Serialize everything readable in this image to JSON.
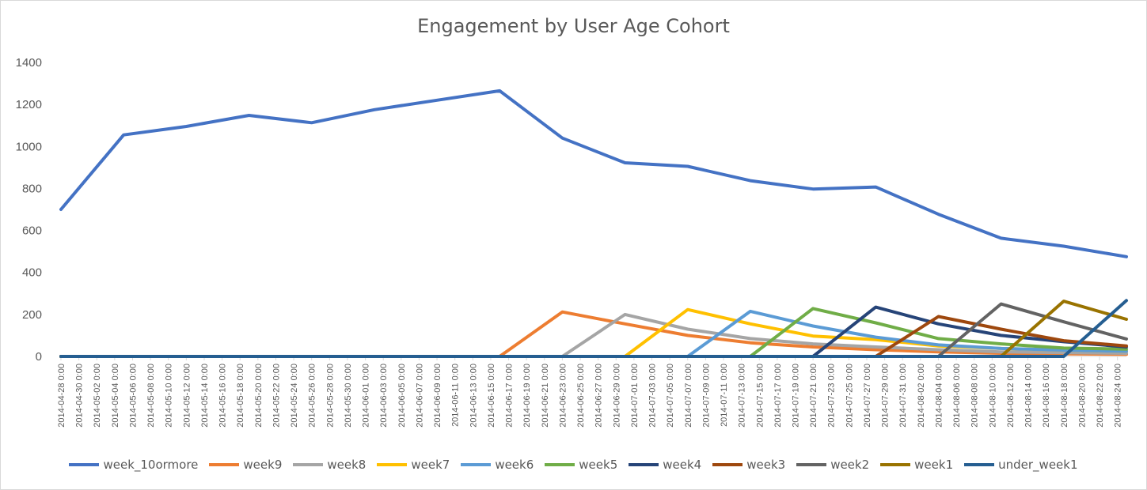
{
  "chart_data": {
    "type": "line",
    "title": "Engagement by User Age Cohort",
    "xlabel": "",
    "ylabel": "",
    "ylim": [
      0,
      1400
    ],
    "yticks": [
      0,
      200,
      400,
      600,
      800,
      1000,
      1200,
      1400
    ],
    "grid": "none",
    "legend": "bottom",
    "x": [
      "2014-04-28 0:00",
      "2014-05-05 0:00",
      "2014-05-12 0:00",
      "2014-05-19 0:00",
      "2014-05-26 0:00",
      "2014-06-02 0:00",
      "2014-06-09 0:00",
      "2014-06-16 0:00",
      "2014-06-23 0:00",
      "2014-06-30 0:00",
      "2014-07-07 0:00",
      "2014-07-14 0:00",
      "2014-07-21 0:00",
      "2014-07-28 0:00",
      "2014-08-04 0:00",
      "2014-08-11 0:00",
      "2014-08-18 0:00",
      "2014-08-25 0:00"
    ],
    "tick_labels": [
      "2014-04-28 0:00",
      "2014-04-30 0:00",
      "2014-05-02 0:00",
      "2014-05-04 0:00",
      "2014-05-06 0:00",
      "2014-05-08 0:00",
      "2014-05-10 0:00",
      "2014-05-12 0:00",
      "2014-05-14 0:00",
      "2014-05-16 0:00",
      "2014-05-18 0:00",
      "2014-05-20 0:00",
      "2014-05-22 0:00",
      "2014-05-24 0:00",
      "2014-05-26 0:00",
      "2014-05-28 0:00",
      "2014-05-30 0:00",
      "2014-06-01 0:00",
      "2014-06-03 0:00",
      "2014-06-05 0:00",
      "2014-06-07 0:00",
      "2014-06-09 0:00",
      "2014-06-11 0:00",
      "2014-06-13 0:00",
      "2014-06-15 0:00",
      "2014-06-17 0:00",
      "2014-06-19 0:00",
      "2014-06-21 0:00",
      "2014-06-23 0:00",
      "2014-06-25 0:00",
      "2014-06-27 0:00",
      "2014-06-29 0:00",
      "2014-07-01 0:00",
      "2014-07-03 0:00",
      "2014-07-05 0:00",
      "2014-07-07 0:00",
      "2014-07-09 0:00",
      "2014-07-11 0:00",
      "2014-07-13 0:00",
      "2014-07-15 0:00",
      "2014-07-17 0:00",
      "2014-07-19 0:00",
      "2014-07-21 0:00",
      "2014-07-23 0:00",
      "2014-07-25 0:00",
      "2014-07-27 0:00",
      "2014-07-29 0:00",
      "2014-07-31 0:00",
      "2014-08-02 0:00",
      "2014-08-04 0:00",
      "2014-08-06 0:00",
      "2014-08-08 0:00",
      "2014-08-10 0:00",
      "2014-08-12 0:00",
      "2014-08-14 0:00",
      "2014-08-16 0:00",
      "2014-08-18 0:00",
      "2014-08-20 0:00",
      "2014-08-22 0:00",
      "2014-08-24 0:00"
    ],
    "series": [
      {
        "name": "week_10ormore",
        "color": "#4472C4",
        "values": [
          700,
          1055,
          1095,
          1148,
          1113,
          1175,
          1220,
          1265,
          1040,
          922,
          905,
          837,
          797,
          807,
          677,
          563,
          525,
          475
        ]
      },
      {
        "name": "week9",
        "color": "#ED7D31",
        "values": [
          0,
          0,
          0,
          0,
          0,
          0,
          0,
          0,
          212,
          155,
          100,
          65,
          45,
          32,
          22,
          15,
          12,
          10
        ]
      },
      {
        "name": "week8",
        "color": "#A5A5A5",
        "values": [
          0,
          0,
          0,
          0,
          0,
          0,
          0,
          0,
          0,
          200,
          130,
          85,
          60,
          45,
          32,
          22,
          18,
          15
        ]
      },
      {
        "name": "week7",
        "color": "#FFC000",
        "values": [
          0,
          0,
          0,
          0,
          0,
          0,
          0,
          0,
          0,
          0,
          223,
          155,
          97,
          80,
          50,
          38,
          30,
          25
        ]
      },
      {
        "name": "week6",
        "color": "#5B9BD5",
        "values": [
          0,
          0,
          0,
          0,
          0,
          0,
          0,
          0,
          0,
          0,
          0,
          215,
          145,
          92,
          55,
          38,
          30,
          25
        ]
      },
      {
        "name": "week5",
        "color": "#70AD47",
        "values": [
          0,
          0,
          0,
          0,
          0,
          0,
          0,
          0,
          0,
          0,
          0,
          0,
          228,
          160,
          85,
          60,
          40,
          35
        ]
      },
      {
        "name": "week4",
        "color": "#264478",
        "values": [
          0,
          0,
          0,
          0,
          0,
          0,
          0,
          0,
          0,
          0,
          0,
          0,
          0,
          235,
          155,
          100,
          70,
          45
        ]
      },
      {
        "name": "week3",
        "color": "#9E480E",
        "values": [
          0,
          0,
          0,
          0,
          0,
          0,
          0,
          0,
          0,
          0,
          0,
          0,
          0,
          0,
          190,
          130,
          75,
          50
        ]
      },
      {
        "name": "week2",
        "color": "#636363",
        "values": [
          0,
          0,
          0,
          0,
          0,
          0,
          0,
          0,
          0,
          0,
          0,
          0,
          0,
          0,
          0,
          250,
          165,
          83
        ]
      },
      {
        "name": "week1",
        "color": "#997300",
        "values": [
          0,
          0,
          0,
          0,
          0,
          0,
          0,
          0,
          0,
          0,
          0,
          0,
          0,
          0,
          0,
          0,
          263,
          177
        ]
      },
      {
        "name": "under_week1",
        "color": "#255E91",
        "values": [
          0,
          0,
          0,
          0,
          0,
          0,
          0,
          0,
          0,
          0,
          0,
          0,
          0,
          0,
          0,
          0,
          0,
          266
        ]
      }
    ]
  }
}
